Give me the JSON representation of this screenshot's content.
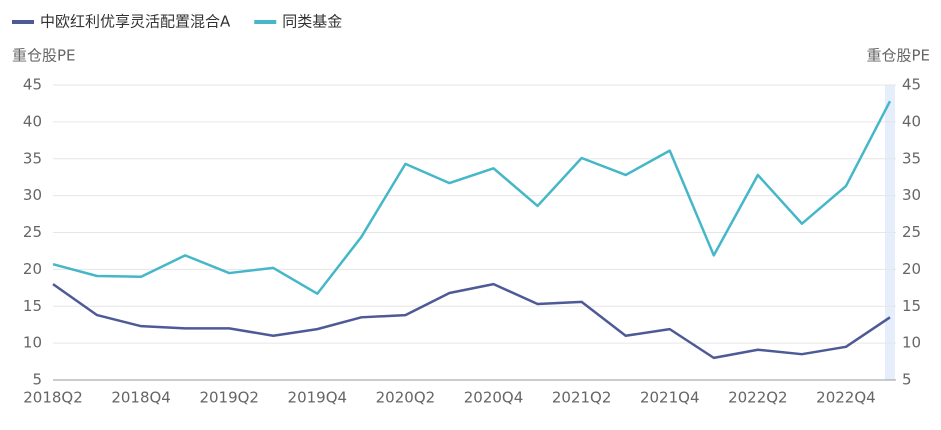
{
  "chart_data": {
    "type": "line",
    "y_label": "重仓股PE",
    "y2_label": "重仓股PE",
    "categories": [
      "2018Q2",
      null,
      "2018Q4",
      null,
      "2019Q2",
      null,
      "2019Q4",
      null,
      "2020Q2",
      null,
      "2020Q4",
      null,
      "2021Q2",
      null,
      "2021Q4",
      null,
      "2022Q2",
      null,
      "2022Q4",
      null
    ],
    "series": [
      {
        "name": "中欧红利优享灵活配置混合A",
        "color": "#4e5a96",
        "values": [
          18.0,
          13.8,
          12.3,
          12.0,
          12.0,
          11.0,
          11.9,
          13.5,
          13.8,
          16.8,
          18.0,
          15.3,
          15.6,
          11.0,
          11.9,
          8.0,
          9.1,
          8.5,
          9.5,
          13.5
        ]
      },
      {
        "name": "同类基金",
        "color": "#45b7c9",
        "values": [
          20.7,
          19.1,
          19.0,
          21.9,
          19.5,
          20.2,
          16.7,
          24.4,
          34.3,
          31.7,
          33.7,
          28.6,
          35.1,
          32.8,
          36.1,
          21.9,
          32.8,
          26.2,
          31.3,
          42.8
        ]
      }
    ],
    "ylim": [
      5,
      45
    ],
    "yticks": [
      5,
      10,
      15,
      20,
      25,
      30,
      35,
      40,
      45
    ],
    "y2lim": [
      5,
      45
    ],
    "y2ticks": [
      5,
      10,
      15,
      20,
      25,
      30,
      35,
      40,
      45
    ],
    "grid": true
  }
}
